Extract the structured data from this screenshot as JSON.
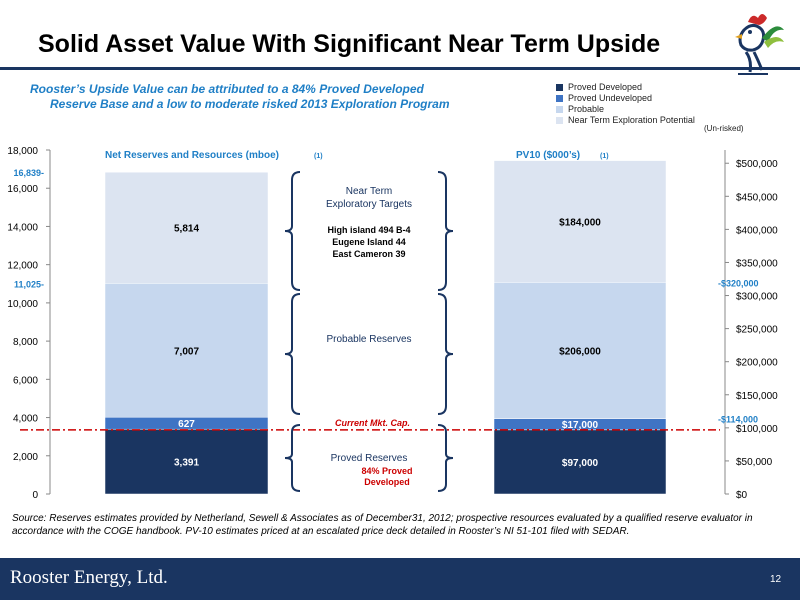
{
  "title": "Solid Asset Value With Significant Near Term Upside",
  "subtitle": {
    "line1": "Rooster’s Upside Value can be attributed  to a 84% Proved Developed",
    "line2": "Reserve Base and a low to moderate risked 2013 Exploration Program"
  },
  "legend": [
    {
      "label": "Proved Developed",
      "color": "#1a3561"
    },
    {
      "label": "Proved Undeveloped",
      "color": "#3f74c4"
    },
    {
      "label": "Probable",
      "color": "#c6d7ee"
    },
    {
      "label": "Near Term Exploration Potential",
      "color": "#dce4f1"
    }
  ],
  "unrisked_note": "(Un-risked)",
  "colors": {
    "proved_developed": "#1a3561",
    "proved_undeveloped": "#3f74c4",
    "probable": "#c6d7ee",
    "exploration": "#dce4f1",
    "accent_blue": "#1f7fc6",
    "accent_red": "#cc0000",
    "footer_bg": "#1a3561"
  },
  "chart_data": [
    {
      "type": "bar",
      "stacked": true,
      "title": "Net Reserves and Resources (mboe)",
      "title_note": "(1)",
      "ylim": [
        0,
        18000
      ],
      "y_ticks": [
        "0",
        "2,000",
        "4,000",
        "6,000",
        "8,000",
        "10,000",
        "12,000",
        "14,000",
        "16,000",
        "18,000"
      ],
      "series": [
        {
          "name": "Proved Developed",
          "value": 3391,
          "label": "3,391"
        },
        {
          "name": "Proved Undeveloped",
          "value": 627,
          "label": "627"
        },
        {
          "name": "Probable",
          "value": 7007,
          "label": "7,007"
        },
        {
          "name": "Near Term Exploration Potential",
          "value": 5814,
          "label": "5,814"
        }
      ],
      "cumulative_marks": [
        {
          "value": 16839,
          "label": "16,839-"
        },
        {
          "value": 11025,
          "label": "11,025-"
        }
      ]
    },
    {
      "type": "bar",
      "stacked": true,
      "title": "PV10 ($000’s)",
      "title_note": "(1)",
      "ylim": [
        0,
        520000
      ],
      "y_ticks": [
        "$0",
        "$50,000",
        "$100,000",
        "$150,000",
        "$200,000",
        "$250,000",
        "$300,000",
        "$350,000",
        "$400,000",
        "$450,000",
        "$500,000"
      ],
      "series": [
        {
          "name": "Proved Developed",
          "value": 97000,
          "label": "$97,000"
        },
        {
          "name": "Proved Undeveloped",
          "value": 17000,
          "label": "$17,000"
        },
        {
          "name": "Probable",
          "value": 206000,
          "label": "$206,000"
        },
        {
          "name": "Near Term Exploration Potential",
          "value": 184000,
          "label": "$184,000"
        }
      ],
      "cumulative_marks": [
        {
          "value": 320000,
          "label": "-$320,000"
        },
        {
          "value": 114000,
          "label": "-$114,000"
        }
      ]
    }
  ],
  "market_cap": {
    "label": "Current Mkt. Cap.",
    "pv10_value": 100000
  },
  "annotations": {
    "near_term_title_1": "Near Term",
    "near_term_title_2": "Exploratory Targets",
    "target_1": "High island 494 B-4",
    "target_2": "Eugene Island  44",
    "target_3": "East Cameron 39",
    "probable": "Probable Reserves",
    "proved": "Proved Reserves",
    "proved_pct_1": "84% Proved",
    "proved_pct_2": "Developed"
  },
  "source": "Source: Reserves estimates provided by Netherland, Sewell & Associates as of December31, 2012; prospective resources evaluated by a qualified reserve evaluator in accordance with the COGE handbook.   PV-10 estimates priced at an escalated price deck detailed in Rooster’s NI 51-101 filed with SEDAR.",
  "footer": {
    "company": "Rooster Energy, Ltd.",
    "page": "12"
  }
}
